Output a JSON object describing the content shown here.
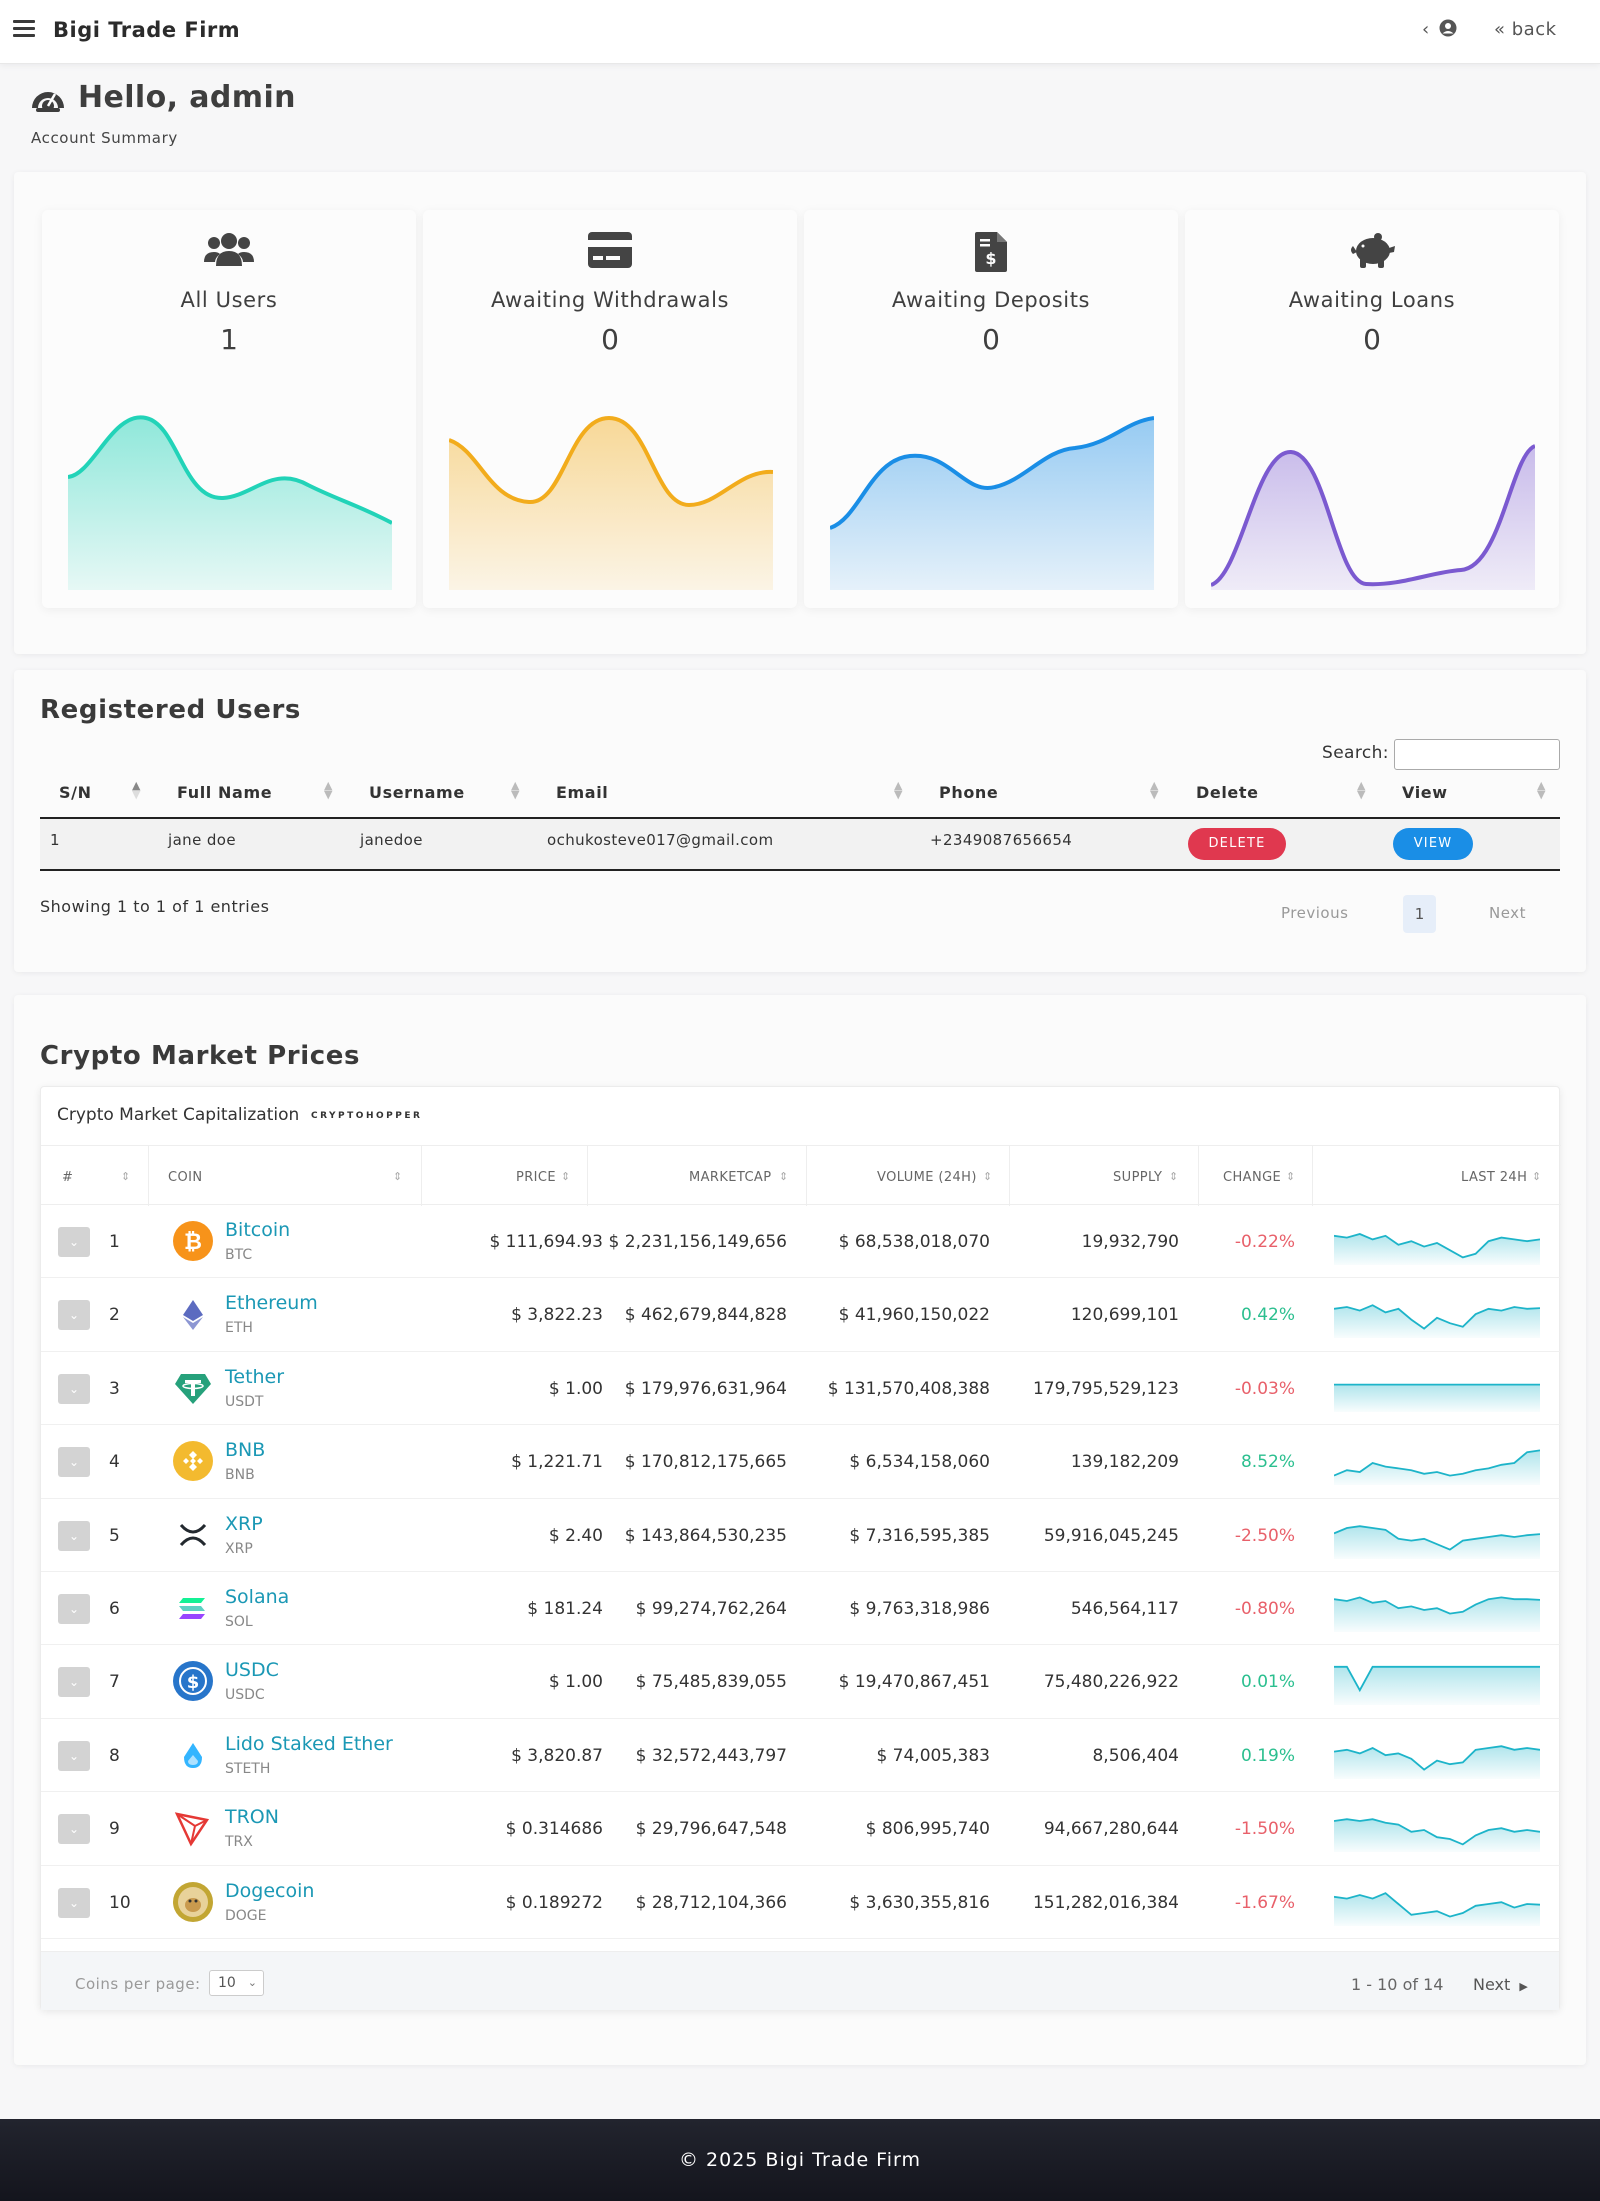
{
  "header": {
    "brand": "Bigi Trade Firm",
    "user_caret": "‹",
    "back_label": "« back"
  },
  "greeting": {
    "title": "Hello, admin",
    "subtitle": "Account Summary"
  },
  "stats": [
    {
      "title": "All Users",
      "value": "1",
      "icon": "users-icon",
      "color": "#22d3b8"
    },
    {
      "title": "Awaiting Withdrawals",
      "value": "0",
      "icon": "credit-card-icon",
      "color": "#f2ac1c"
    },
    {
      "title": "Awaiting Deposits",
      "value": "0",
      "icon": "invoice-dollar-icon",
      "color": "#1a8ee6"
    },
    {
      "title": "Awaiting Loans",
      "value": "0",
      "icon": "piggy-bank-icon",
      "color": "#7b5ad0"
    }
  ],
  "users_section": {
    "title": "Registered Users",
    "search_label": "Search:",
    "columns": [
      "S/N",
      "Full Name",
      "Username",
      "Email",
      "Phone",
      "Delete",
      "View"
    ],
    "rows": [
      {
        "sn": "1",
        "full_name": "jane doe",
        "username": "janedoe",
        "email": "ochukosteve017@gmail.com",
        "phone": "+2349087656654",
        "delete_label": "DELETE",
        "view_label": "VIEW"
      }
    ],
    "entries_info": "Showing 1 to 1 of 1 entries",
    "pagination": {
      "prev": "Previous",
      "page": "1",
      "next": "Next"
    }
  },
  "crypto_section": {
    "title": "Crypto Market Prices",
    "widget_title": "Crypto Market Capitalization",
    "widget_logo": "CRYPTOHOPPER",
    "columns": [
      "#",
      "COIN",
      "PRICE",
      "MARKETCAP",
      "VOLUME (24H)",
      "SUPPLY",
      "CHANGE",
      "LAST 24H"
    ],
    "coins": [
      {
        "rank": "1",
        "name": "Bitcoin",
        "symbol": "BTC",
        "price": "$ 111,694.93",
        "marketcap": "$ 2,231,156,149,656",
        "volume": "$ 68,538,018,070",
        "supply": "19,932,790",
        "change": "-0.22%",
        "icon": "bitcoin-icon",
        "icon_color": "#f7931a"
      },
      {
        "rank": "2",
        "name": "Ethereum",
        "symbol": "ETH",
        "price": "$ 3,822.23",
        "marketcap": "$ 462,679,844,828",
        "volume": "$ 41,960,150,022",
        "supply": "120,699,101",
        "change": "0.42%",
        "icon": "ethereum-icon",
        "icon_color": "#5c6bc0"
      },
      {
        "rank": "3",
        "name": "Tether",
        "symbol": "USDT",
        "price": "$ 1.00",
        "marketcap": "$ 179,976,631,964",
        "volume": "$ 131,570,408,388",
        "supply": "179,795,529,123",
        "change": "-0.03%",
        "icon": "tether-icon",
        "icon_color": "#26a17b"
      },
      {
        "rank": "4",
        "name": "BNB",
        "symbol": "BNB",
        "price": "$ 1,221.71",
        "marketcap": "$ 170,812,175,665",
        "volume": "$ 6,534,158,060",
        "supply": "139,182,209",
        "change": "8.52%",
        "icon": "bnb-icon",
        "icon_color": "#f3ba2f"
      },
      {
        "rank": "5",
        "name": "XRP",
        "symbol": "XRP",
        "price": "$ 2.40",
        "marketcap": "$ 143,864,530,235",
        "volume": "$ 7,316,595,385",
        "supply": "59,916,045,245",
        "change": "-2.50%",
        "icon": "xrp-icon",
        "icon_color": "#23292f"
      },
      {
        "rank": "6",
        "name": "Solana",
        "symbol": "SOL",
        "price": "$ 181.24",
        "marketcap": "$ 99,274,762,264",
        "volume": "$ 9,763,318,986",
        "supply": "546,564,117",
        "change": "-0.80%",
        "icon": "solana-icon",
        "icon_color": "#9945ff"
      },
      {
        "rank": "7",
        "name": "USDC",
        "symbol": "USDC",
        "price": "$ 1.00",
        "marketcap": "$ 75,485,839,055",
        "volume": "$ 19,470,867,451",
        "supply": "75,480,226,922",
        "change": "0.01%",
        "icon": "usdc-icon",
        "icon_color": "#2775ca"
      },
      {
        "rank": "8",
        "name": "Lido Staked Ether",
        "symbol": "STETH",
        "price": "$ 3,820.87",
        "marketcap": "$ 32,572,443,797",
        "volume": "$ 74,005,383",
        "supply": "8,506,404",
        "change": "0.19%",
        "icon": "lido-icon",
        "icon_color": "#00a3ff"
      },
      {
        "rank": "9",
        "name": "TRON",
        "symbol": "TRX",
        "price": "$ 0.314686",
        "marketcap": "$ 29,796,647,548",
        "volume": "$ 806,995,740",
        "supply": "94,667,280,644",
        "change": "-1.50%",
        "icon": "tron-icon",
        "icon_color": "#e53935"
      },
      {
        "rank": "10",
        "name": "Dogecoin",
        "symbol": "DOGE",
        "price": "$ 0.189272",
        "marketcap": "$ 28,712,104,366",
        "volume": "$ 3,630,355,816",
        "supply": "151,282,016,384",
        "change": "-1.67%",
        "icon": "dogecoin-icon",
        "icon_color": "#c2a633"
      }
    ],
    "coins_per_page_label": "Coins per page:",
    "coins_per_page": "10",
    "range": "1 - 10 of 14",
    "next_label": "Next"
  },
  "colors": {
    "positive": "#2bbf8f",
    "negative": "#e8606a",
    "spark": "#1db4c9"
  },
  "footer": {
    "text": "© 2025 Bigi Trade Firm"
  }
}
